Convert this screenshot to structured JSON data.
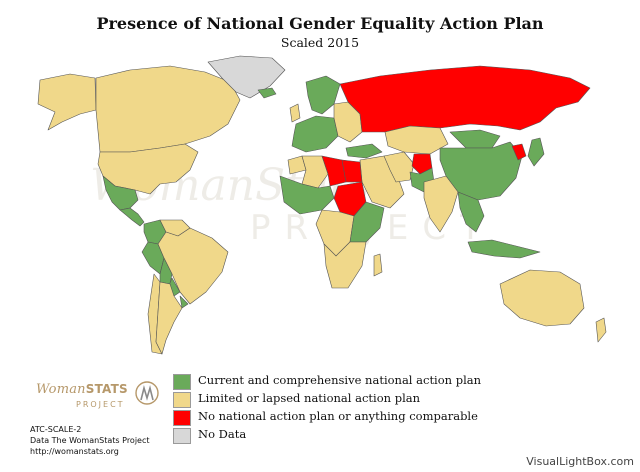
{
  "title": "Presence of National Gender Equality Action Plan",
  "subtitle": "Scaled 2015",
  "colors": {
    "current": "#6aaa5a",
    "limited": "#f0d88a",
    "none": "#ff0000",
    "nodata": "#d8d8d8",
    "border": "#555555"
  },
  "legend": [
    {
      "key": "current",
      "label": "Current and comprehensive national action plan"
    },
    {
      "key": "limited",
      "label": "Limited or lapsed national action plan"
    },
    {
      "key": "none",
      "label": "No national action plan or anything comparable"
    },
    {
      "key": "nodata",
      "label": "No Data"
    }
  ],
  "logo": {
    "main": "Woman",
    "bold": "STATS",
    "sub": "PROJECT"
  },
  "footer": {
    "code": "ATC-SCALE-2",
    "source": "Data The WomanStats Project",
    "url": "http://womanstats.org"
  },
  "watermark": "VisualLightBox.com",
  "background_watermark": {
    "main": "WomanStats",
    "sub": "PROJECT"
  },
  "regions": [
    {
      "name": "Canada",
      "category": "limited"
    },
    {
      "name": "Alaska",
      "category": "limited"
    },
    {
      "name": "United States",
      "category": "limited"
    },
    {
      "name": "Greenland",
      "category": "nodata"
    },
    {
      "name": "Mexico",
      "category": "current"
    },
    {
      "name": "Central America",
      "category": "current"
    },
    {
      "name": "Colombia",
      "category": "current"
    },
    {
      "name": "Venezuela",
      "category": "limited"
    },
    {
      "name": "Brazil",
      "category": "limited"
    },
    {
      "name": "Peru",
      "category": "current"
    },
    {
      "name": "Bolivia",
      "category": "current"
    },
    {
      "name": "Paraguay",
      "category": "current"
    },
    {
      "name": "Chile",
      "category": "limited"
    },
    {
      "name": "Argentina",
      "category": "limited"
    },
    {
      "name": "Uruguay",
      "category": "current"
    },
    {
      "name": "Iceland",
      "category": "current"
    },
    {
      "name": "United Kingdom",
      "category": "limited"
    },
    {
      "name": "Scandinavia",
      "category": "current"
    },
    {
      "name": "Western Europe",
      "category": "current"
    },
    {
      "name": "Eastern Europe",
      "category": "limited"
    },
    {
      "name": "Russia",
      "category": "none"
    },
    {
      "name": "Kazakhstan",
      "category": "limited"
    },
    {
      "name": "Mongolia",
      "category": "current"
    },
    {
      "name": "China",
      "category": "current"
    },
    {
      "name": "Japan",
      "category": "current"
    },
    {
      "name": "Korea",
      "category": "none"
    },
    {
      "name": "Turkey",
      "category": "current"
    },
    {
      "name": "Middle East",
      "category": "limited"
    },
    {
      "name": "Iran",
      "category": "limited"
    },
    {
      "name": "Afghanistan",
      "category": "none"
    },
    {
      "name": "Pakistan",
      "category": "current"
    },
    {
      "name": "India",
      "category": "limited"
    },
    {
      "name": "Southeast Asia",
      "category": "current"
    },
    {
      "name": "Indonesia",
      "category": "current"
    },
    {
      "name": "Australia",
      "category": "limited"
    },
    {
      "name": "New Zealand",
      "category": "limited"
    },
    {
      "name": "Morocco",
      "category": "limited"
    },
    {
      "name": "Algeria",
      "category": "limited"
    },
    {
      "name": "Libya",
      "category": "none"
    },
    {
      "name": "Egypt",
      "category": "none"
    },
    {
      "name": "Sudan",
      "category": "none"
    },
    {
      "name": "West Africa",
      "category": "current"
    },
    {
      "name": "Central Africa",
      "category": "limited"
    },
    {
      "name": "East Africa",
      "category": "current"
    },
    {
      "name": "Southern Africa",
      "category": "limited"
    },
    {
      "name": "Madagascar",
      "category": "limited"
    }
  ]
}
